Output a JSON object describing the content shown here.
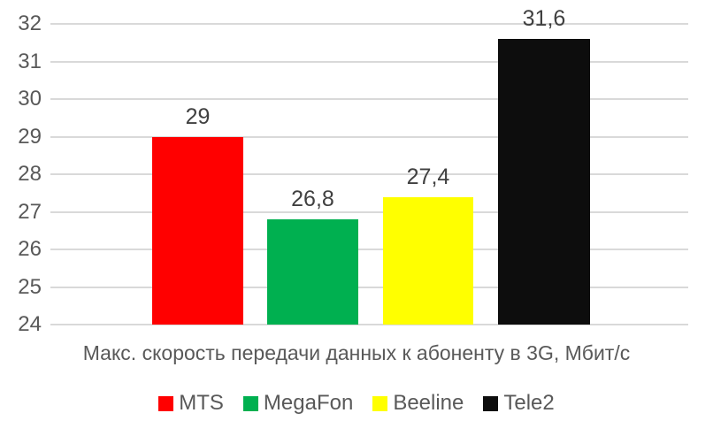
{
  "chart_data": {
    "type": "bar",
    "categories": [
      "MTS",
      "MegaFon",
      "Beeline",
      "Tele2"
    ],
    "values": [
      29,
      26.8,
      27.4,
      31.6
    ],
    "value_labels": [
      "29",
      "26,8",
      "27,4",
      "31,6"
    ],
    "bar_colors": [
      "#ff0000",
      "#00b050",
      "#ffff00",
      "#0d0d0d"
    ],
    "title": "Макс. скорость передачи данных к абоненту в 3G, Мбит/с",
    "xlabel": "Макс. скорость передачи данных к абоненту в 3G, Мбит/с",
    "ylabel": "",
    "ylim": [
      24,
      32
    ],
    "ytick_step": 1,
    "ytick_labels": [
      "32",
      "31",
      "30",
      "29",
      "28",
      "27",
      "26",
      "25",
      "24"
    ],
    "grid": true,
    "legend_position": "bottom",
    "legend": [
      {
        "label": "MTS",
        "color": "#ff0000"
      },
      {
        "label": "MegaFon",
        "color": "#00b050"
      },
      {
        "label": "Beeline",
        "color": "#ffff00"
      },
      {
        "label": "Tele2",
        "color": "#0d0d0d"
      }
    ]
  },
  "styles": {
    "grid_color": "#d9d9d9",
    "tick_text_color": "#595959",
    "data_label_color": "#404040",
    "background": "#ffffff"
  }
}
